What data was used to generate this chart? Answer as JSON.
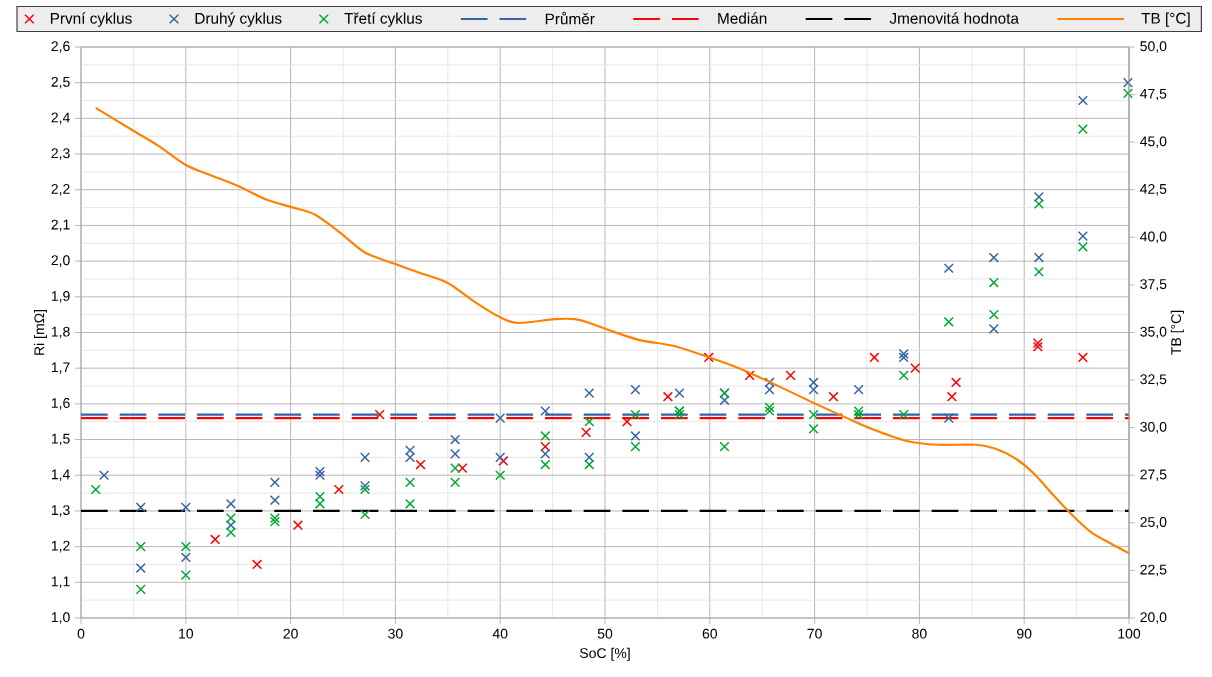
{
  "chart_data": {
    "type": "scatter",
    "xlabel": "SoC [%]",
    "ylabel": "Ri [mΩ]",
    "y2label": "TB [°C]",
    "xlim": [
      0,
      100
    ],
    "xticks": [
      0,
      10,
      20,
      30,
      40,
      50,
      60,
      70,
      80,
      90,
      100
    ],
    "ylim": [
      1.0,
      2.6
    ],
    "yticks": [
      {
        "value": 1.0,
        "label": "1,0"
      },
      {
        "value": 1.1,
        "label": "1,1"
      },
      {
        "value": 1.2,
        "label": "1,2"
      },
      {
        "value": 1.3,
        "label": "1,3"
      },
      {
        "value": 1.4,
        "label": "1,4"
      },
      {
        "value": 1.5,
        "label": "1,5"
      },
      {
        "value": 1.6,
        "label": "1,6"
      },
      {
        "value": 1.7,
        "label": "1,7"
      },
      {
        "value": 1.8,
        "label": "1,8"
      },
      {
        "value": 1.9,
        "label": "1,9"
      },
      {
        "value": 2.0,
        "label": "2,0"
      },
      {
        "value": 2.1,
        "label": "2,1"
      },
      {
        "value": 2.2,
        "label": "2,2"
      },
      {
        "value": 2.3,
        "label": "2,3"
      },
      {
        "value": 2.4,
        "label": "2,4"
      },
      {
        "value": 2.5,
        "label": "2,5"
      },
      {
        "value": 2.6,
        "label": "2,6"
      }
    ],
    "y2lim": [
      20,
      50
    ],
    "y2ticks": [
      {
        "value": 20,
        "label": "20,0"
      },
      {
        "value": 22.5,
        "label": "22,5"
      },
      {
        "value": 25,
        "label": "25,0"
      },
      {
        "value": 27.5,
        "label": "27,5"
      },
      {
        "value": 30,
        "label": "30,0"
      },
      {
        "value": 32.5,
        "label": "32,5"
      },
      {
        "value": 35,
        "label": "35,0"
      },
      {
        "value": 37.5,
        "label": "37,5"
      },
      {
        "value": 40,
        "label": "40,0"
      },
      {
        "value": 42.5,
        "label": "42,5"
      },
      {
        "value": 45,
        "label": "45,0"
      },
      {
        "value": 47.5,
        "label": "47,5"
      },
      {
        "value": 50,
        "label": "50,0"
      }
    ],
    "grid": true,
    "legend": "top",
    "marker": "cross",
    "series": [
      {
        "name": "První cyklus",
        "color": "#ff0000",
        "x": [
          12.8,
          16.8,
          20.7,
          24.6,
          28.5,
          32.4,
          36.4,
          40.3,
          44.3,
          48.2,
          52.1,
          56.0,
          59.9,
          63.8,
          67.7,
          71.8,
          75.7,
          79.6,
          83.1,
          83.5,
          91.3,
          91.3,
          95.6
        ],
        "values": [
          1.22,
          1.15,
          1.26,
          1.36,
          1.57,
          1.43,
          1.42,
          1.44,
          1.48,
          1.52,
          1.55,
          1.62,
          1.73,
          1.68,
          1.68,
          1.62,
          1.73,
          1.7,
          1.62,
          1.66,
          1.77,
          1.76,
          1.73
        ]
      },
      {
        "name": "Druhý cyklus",
        "color": "#3465a4",
        "x": [
          2.2,
          5.7,
          5.7,
          10.0,
          10.0,
          14.3,
          14.3,
          18.5,
          18.5,
          22.8,
          22.8,
          27.1,
          27.1,
          31.4,
          31.4,
          35.7,
          35.7,
          40.0,
          40.0,
          44.3,
          44.3,
          48.5,
          48.5,
          52.9,
          52.9,
          57.1,
          57.1,
          61.4,
          61.4,
          65.7,
          65.7,
          69.9,
          69.9,
          74.2,
          78.5,
          78.5,
          82.8,
          82.8,
          87.1,
          87.1,
          91.4,
          91.4,
          95.6,
          95.6,
          99.9
        ],
        "values": [
          1.4,
          1.31,
          1.14,
          1.31,
          1.17,
          1.32,
          1.26,
          1.38,
          1.33,
          1.4,
          1.41,
          1.45,
          1.37,
          1.47,
          1.45,
          1.5,
          1.46,
          1.56,
          1.45,
          1.58,
          1.46,
          1.63,
          1.45,
          1.64,
          1.51,
          1.63,
          1.58,
          1.63,
          1.61,
          1.66,
          1.64,
          1.66,
          1.64,
          1.64,
          1.73,
          1.74,
          1.56,
          1.98,
          2.01,
          1.81,
          2.18,
          2.01,
          2.45,
          2.07,
          2.5
        ]
      },
      {
        "name": "Třetí cyklus",
        "color": "#00a933",
        "x": [
          1.4,
          5.7,
          5.7,
          10.0,
          10.0,
          14.3,
          14.3,
          18.5,
          18.5,
          22.8,
          22.8,
          27.1,
          27.1,
          31.4,
          31.4,
          35.7,
          35.7,
          40.0,
          44.3,
          44.3,
          48.5,
          48.5,
          52.9,
          52.9,
          57.1,
          57.1,
          61.4,
          61.4,
          65.7,
          65.7,
          69.9,
          69.9,
          74.2,
          74.2,
          78.5,
          78.5,
          82.8,
          87.1,
          87.1,
          91.4,
          91.4,
          95.6,
          95.6,
          99.9
        ],
        "values": [
          1.36,
          1.2,
          1.08,
          1.2,
          1.12,
          1.28,
          1.24,
          1.28,
          1.27,
          1.34,
          1.32,
          1.36,
          1.29,
          1.38,
          1.32,
          1.42,
          1.38,
          1.4,
          1.51,
          1.43,
          1.55,
          1.43,
          1.57,
          1.48,
          1.57,
          1.58,
          1.63,
          1.48,
          1.59,
          1.58,
          1.57,
          1.53,
          1.58,
          1.57,
          1.68,
          1.57,
          1.83,
          1.94,
          1.85,
          2.16,
          1.97,
          2.37,
          2.04,
          2.47
        ]
      },
      {
        "name": "TB [°C]",
        "type": "line",
        "axis": "y2",
        "marker": "none",
        "color": "#ff8000",
        "x": [
          1.4,
          5.0,
          7.4,
          10.0,
          12.2,
          15.0,
          17.6,
          20.0,
          22.3,
          24.6,
          27.1,
          30.0,
          32.5,
          35.0,
          37.6,
          40.0,
          41.7,
          45.2,
          47.1,
          48.5,
          50.5,
          53.3,
          56.5,
          59.9,
          62.9,
          66.1,
          69.9,
          73.1,
          75.6,
          78.8,
          81.7,
          85.4,
          87.2,
          89.1,
          90.9,
          92.7,
          94.6,
          96.4,
          98.3,
          100
        ],
        "values": [
          46.8,
          45.6,
          44.8,
          43.8,
          43.3,
          42.7,
          42.0,
          41.6,
          41.2,
          40.3,
          39.2,
          38.6,
          38.1,
          37.6,
          36.6,
          35.8,
          35.5,
          35.7,
          35.7,
          35.5,
          35.1,
          34.6,
          34.3,
          33.7,
          33.1,
          32.3,
          31.3,
          30.5,
          29.9,
          29.3,
          29.1,
          29.1,
          28.9,
          28.4,
          27.6,
          26.5,
          25.4,
          24.5,
          23.9,
          23.4
        ]
      }
    ],
    "ref_lines": [
      {
        "axis": "y",
        "value": 1.57,
        "label": "Průměr",
        "color": "#3465a4",
        "line_style": "dashed"
      },
      {
        "axis": "y",
        "value": 1.56,
        "label": "Medián",
        "color": "#ff0000",
        "line_style": "dashed"
      },
      {
        "axis": "y",
        "value": 1.3,
        "label": "Jmenovitá hodnota",
        "color": "#000000",
        "line_style": "dashed"
      }
    ]
  }
}
